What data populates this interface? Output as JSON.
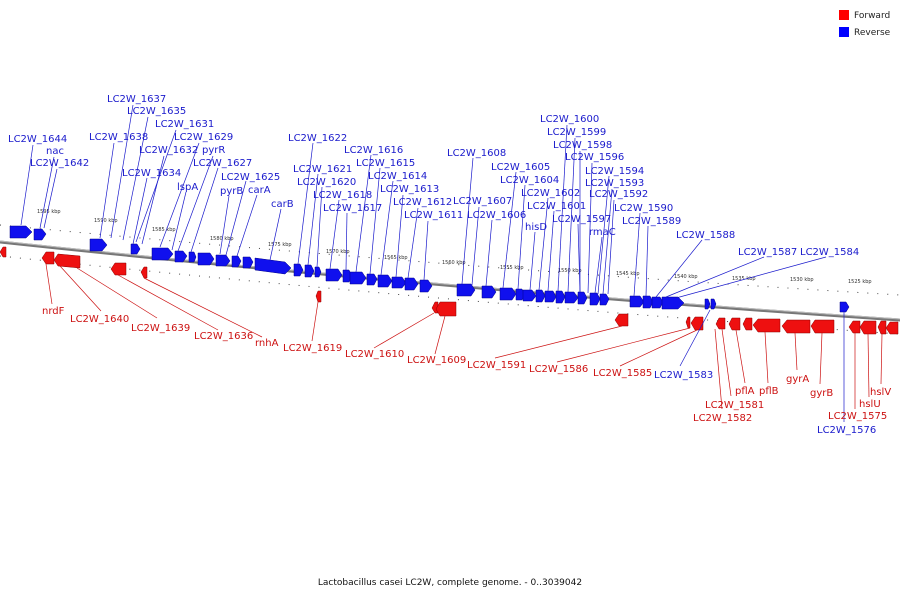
{
  "legend": {
    "forward": {
      "label": "Forward",
      "color": "#ff0000"
    },
    "reverse": {
      "label": "Reverse",
      "color": "#0000ff"
    }
  },
  "caption": "Lactobacillus casei LC2W, complete genome. - 0..3039042",
  "ticks": [
    "1595 kbp",
    "1590 kbp",
    "1585 kbp",
    "1580 kbp",
    "1575 kbp",
    "1570 kbp",
    "1565 kbp",
    "1560 kbp",
    "1555 kbp",
    "1550 kbp",
    "1545 kbp",
    "1540 kbp",
    "1535 kbp",
    "1530 kbp",
    "1525 kbp"
  ],
  "reverse_labels": [
    "LC2W_1644",
    "nac",
    "LC2W_1642",
    "LC2W_1638",
    "LC2W_1637",
    "LC2W_1635",
    "LC2W_1631",
    "LC2W_1632",
    "LC2W_1634",
    "LC2W_1629",
    "pyrR",
    "LC2W_1627",
    "lspA",
    "pyrB",
    "LC2W_1625",
    "carA",
    "carB",
    "LC2W_1622",
    "LC2W_1621",
    "LC2W_1620",
    "LC2W_1618",
    "LC2W_1617",
    "LC2W_1616",
    "LC2W_1615",
    "LC2W_1614",
    "LC2W_1613",
    "LC2W_1612",
    "LC2W_1611",
    "LC2W_1608",
    "LC2W_1607",
    "LC2W_1606",
    "LC2W_1605",
    "LC2W_1604",
    "hisD",
    "LC2W_1602",
    "LC2W_1601",
    "LC2W_1600",
    "LC2W_1599",
    "LC2W_1598",
    "LC2W_1596",
    "LC2W_1597",
    "rmaC",
    "LC2W_1594",
    "LC2W_1593",
    "LC2W_1592",
    "LC2W_1590",
    "LC2W_1589",
    "LC2W_1588",
    "LC2W_1587",
    "LC2W_1584",
    "LC2W_1583",
    "LC2W_1576"
  ],
  "forward_labels": [
    "nrdF",
    "LC2W_1640",
    "LC2W_1639",
    "LC2W_1636",
    "rnhA",
    "LC2W_1619",
    "LC2W_1610",
    "LC2W_1609",
    "LC2W_1591",
    "LC2W_1586",
    "LC2W_1585",
    "LC2W_1581",
    "LC2W_1582",
    "pflA",
    "pflB",
    "gyrA",
    "gyrB",
    "LC2W_1575",
    "hslU",
    "hslV"
  ]
}
